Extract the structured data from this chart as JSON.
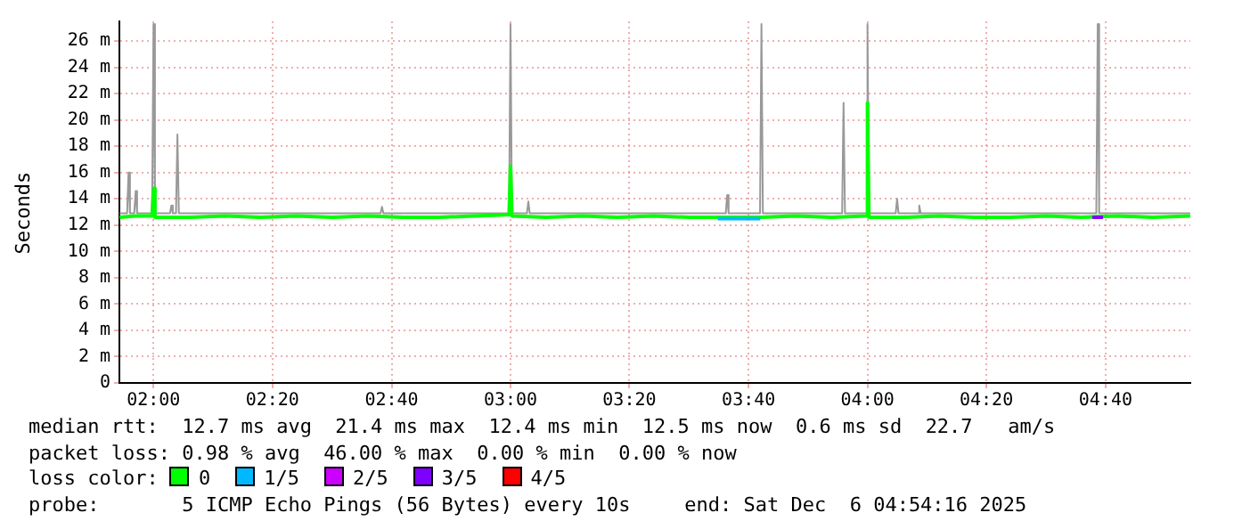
{
  "chart_data": {
    "type": "line",
    "ylabel": "Seconds",
    "xlim": [
      1.9044,
      4.9044
    ],
    "xticks": [
      {
        "value": 2,
        "label": "02:00"
      },
      {
        "value": 2.333,
        "label": "02:20"
      },
      {
        "value": 2.667,
        "label": "02:40"
      },
      {
        "value": 3,
        "label": "03:00"
      },
      {
        "value": 3.333,
        "label": "03:20"
      },
      {
        "value": 3.667,
        "label": "03:40"
      },
      {
        "value": 4,
        "label": "04:00"
      },
      {
        "value": 4.333,
        "label": "04:20"
      },
      {
        "value": 4.667,
        "label": "04:40"
      }
    ],
    "ylim": [
      0,
      27.5
    ],
    "yticks": [
      0,
      {
        "value": 2,
        "label": "2 m"
      },
      {
        "value": 4,
        "label": "4 m"
      },
      {
        "value": 6,
        "label": "6 m"
      },
      {
        "value": 8,
        "label": "8 m"
      },
      {
        "value": 10,
        "label": "10 m"
      },
      {
        "value": 12,
        "label": "12 m"
      },
      {
        "value": 14,
        "label": "14 m"
      },
      {
        "value": 16,
        "label": "16 m"
      },
      {
        "value": 18,
        "label": "18 m"
      },
      {
        "value": 20,
        "label": "20 m"
      },
      {
        "value": 22,
        "label": "22 m"
      },
      {
        "value": 24,
        "label": "24 m"
      },
      {
        "value": 26,
        "label": "26 m"
      }
    ],
    "grid": true,
    "legend": "bottom",
    "line_style": "solid",
    "marker": "none",
    "series": [
      {
        "color": "#999999",
        "x": [
          1.905,
          1.926,
          1.93,
          1.934,
          1.946,
          1.95,
          1.954,
          1.996,
          2.0,
          2.004,
          2.046,
          2.05,
          2.054,
          2.063,
          2.067,
          2.071,
          2.636,
          2.64,
          2.644,
          2.996,
          3.0,
          3.004,
          3.046,
          3.05,
          3.054,
          3.603,
          3.607,
          3.611,
          3.699,
          3.703,
          3.707,
          3.929,
          3.933,
          3.937,
          3.996,
          4.0,
          4.004,
          4.079,
          4.083,
          4.087,
          4.141,
          4.145,
          4.149,
          4.641,
          4.645,
          4.649,
          4.904
        ],
        "values": [
          12.9,
          12.9,
          16,
          12.9,
          12.9,
          14.6,
          12.9,
          12.9,
          27.3,
          12.9,
          12.9,
          13.5,
          12.9,
          12.9,
          18.9,
          12.9,
          12.9,
          13.4,
          12.9,
          12.9,
          27.3,
          12.9,
          12.9,
          13.8,
          12.9,
          12.9,
          14.3,
          12.9,
          12.9,
          27.3,
          12.9,
          12.9,
          21.3,
          12.9,
          12.9,
          27.3,
          12.9,
          12.9,
          14,
          12.9,
          12.9,
          13.5,
          12.9,
          12.9,
          27.3,
          12.9,
          12.9
        ]
      },
      {
        "name": "0",
        "color": "#00ff00",
        "x": [
          1.905,
          1.95,
          1.996,
          2.0,
          2.004,
          2.1,
          2.2,
          2.3,
          2.4,
          2.5,
          2.6,
          2.7,
          2.8,
          2.9,
          2.996,
          3.0,
          3.004,
          3.1,
          3.2,
          3.3,
          3.4,
          3.5,
          3.6,
          3.7,
          3.8,
          3.9,
          3.996,
          4.0,
          4.004,
          4.1,
          4.2,
          4.3,
          4.4,
          4.5,
          4.6,
          4.7,
          4.8,
          4.904
        ],
        "values": [
          12.6,
          12.7,
          12.7,
          14.8,
          12.6,
          12.6,
          12.7,
          12.6,
          12.7,
          12.6,
          12.7,
          12.6,
          12.6,
          12.7,
          12.8,
          16.5,
          12.7,
          12.6,
          12.7,
          12.6,
          12.7,
          12.6,
          12.6,
          12.6,
          12.7,
          12.6,
          12.7,
          21.3,
          12.6,
          12.6,
          12.7,
          12.6,
          12.6,
          12.7,
          12.6,
          12.7,
          12.6,
          12.7
        ]
      },
      {
        "name": "1/5",
        "color": "#00b8ff",
        "x": [
          3.58,
          3.62,
          3.66,
          3.7
        ],
        "values": [
          12.5,
          12.5,
          12.5,
          12.5
        ]
      },
      {
        "name": "2/5",
        "color": "#cc00ff"
      },
      {
        "name": "3/5",
        "color": "#7e00ff",
        "x": [
          4.63,
          4.645,
          4.66
        ],
        "values": [
          12.6,
          12.6,
          12.6
        ]
      },
      {
        "name": "4/5",
        "color": "#ff0000"
      }
    ],
    "annotations": [
      "median rtt:  12.7 ms avg  21.4 ms max  12.4 ms min  12.5 ms now  0.6 ms sd  22.7   am/s",
      "packet loss: 0.98 % avg  46.00 % max  0.00 % min  0.00 % now",
      "loss color:",
      "probe:       5 ICMP Echo Pings (56 Bytes) every 10s",
      "end: Sat Dec  6 04:54:16 2025"
    ]
  }
}
